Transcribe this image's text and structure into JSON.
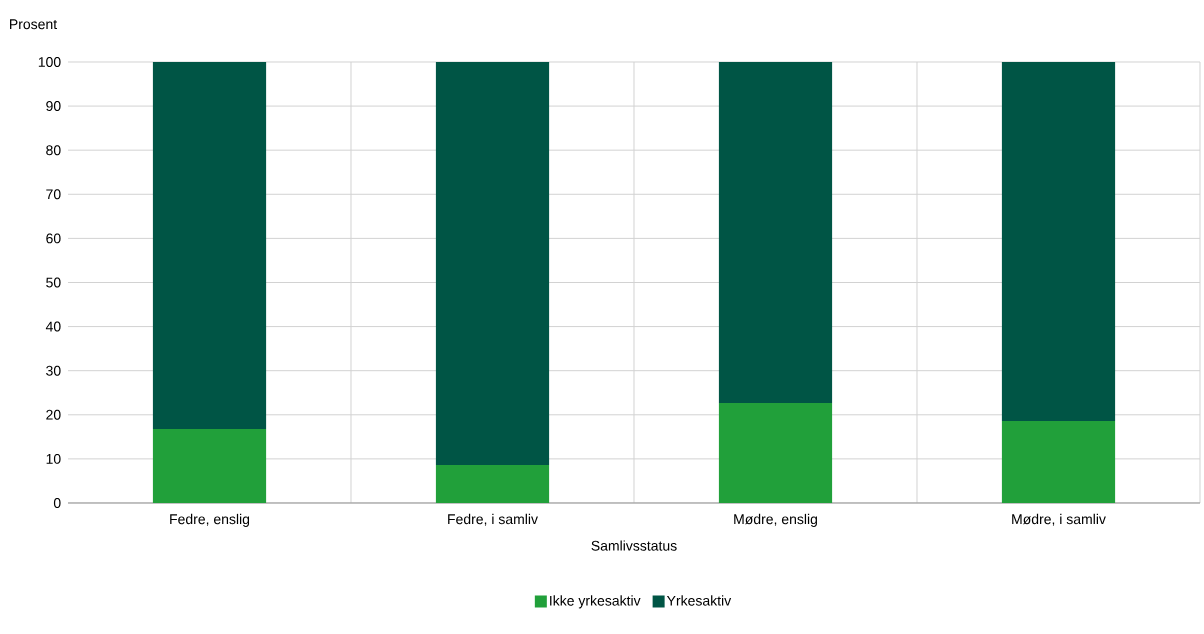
{
  "chart_data": {
    "type": "bar",
    "stacked": true,
    "ylabel": "Prosent",
    "xlabel": "Samlivsstatus",
    "categories": [
      "Fedre, enslig",
      "Fedre, i samliv",
      "Mødre, enslig",
      "Mødre, i samliv"
    ],
    "series": [
      {
        "name": "Ikke yrkesaktiv",
        "color": "#21a03a",
        "values": [
          16.8,
          8.6,
          22.7,
          18.6
        ]
      },
      {
        "name": "Yrkesaktiv",
        "color": "#005545",
        "values": [
          83.2,
          91.4,
          77.3,
          81.4
        ]
      }
    ],
    "ylim": [
      0,
      100
    ],
    "yticks": [
      0,
      10,
      20,
      30,
      40,
      50,
      60,
      70,
      80,
      90,
      100
    ],
    "grid": true,
    "legend": "bottom"
  }
}
